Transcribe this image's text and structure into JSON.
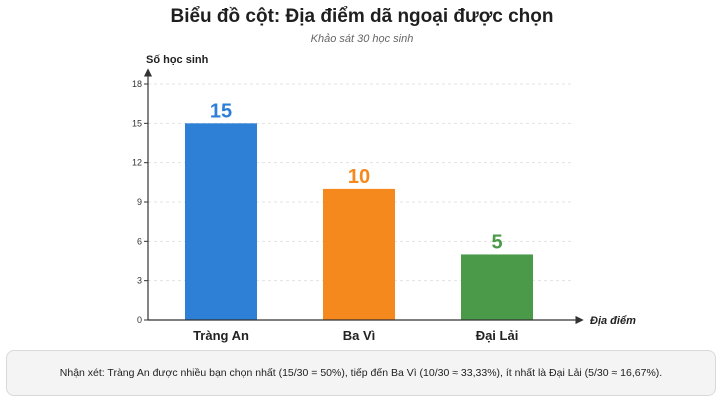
{
  "chart_data": {
    "type": "bar",
    "title": "Biểu đồ cột: Địa điểm dã ngoại được chọn",
    "subtitle": "Khảo sát 30 học sinh",
    "xlabel": "Địa điểm",
    "ylabel": "Số học sinh",
    "categories": [
      "Tràng An",
      "Ba Vì",
      "Đại Lải"
    ],
    "values": [
      15,
      10,
      5
    ],
    "colors": [
      "#2e7fd6",
      "#f5891e",
      "#4a9a4a"
    ],
    "ylim": [
      0,
      18
    ],
    "yticks": [
      0,
      3,
      6,
      9,
      12,
      15,
      18
    ],
    "grid": true
  },
  "note": "Nhận xét: Tràng An được nhiều bạn chọn nhất (15/30 = 50%), tiếp đến Ba Vì (10/30 ≈ 33,33%), ít nhất là Đại Lải (5/30 ≈ 16,67%)."
}
